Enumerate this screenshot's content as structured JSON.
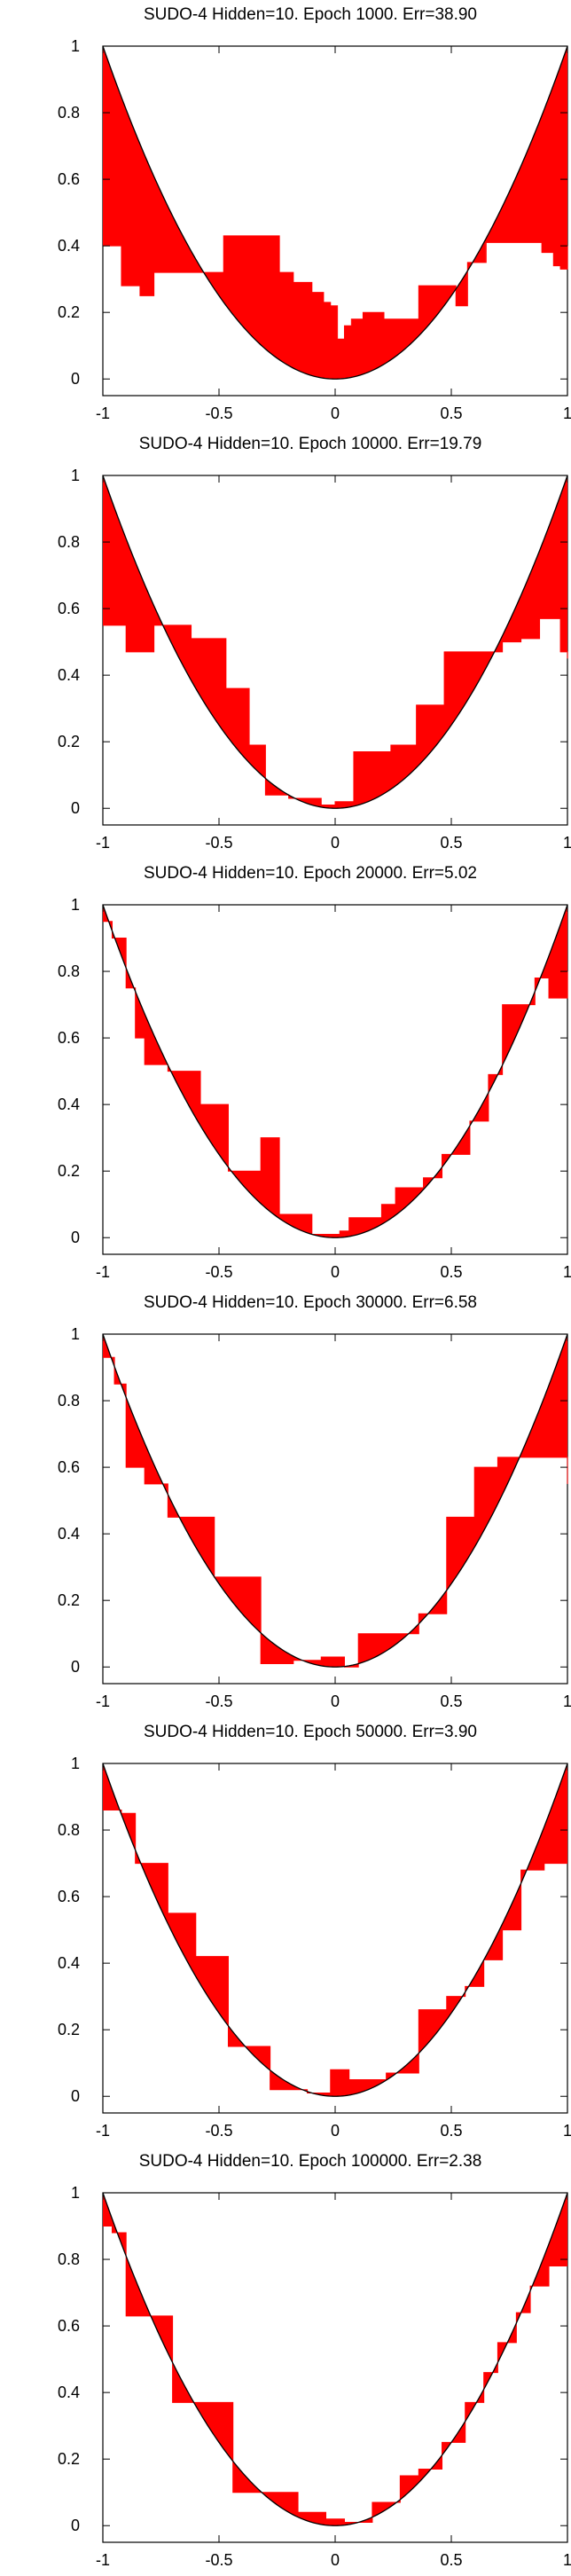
{
  "chart_data": [
    {
      "type": "area",
      "title": "SUDO-4 Hidden=10. Epoch 1000. Err=38.90",
      "xlim": [
        -1,
        1
      ],
      "ylim": [
        -0.05,
        1
      ],
      "xticks": [
        -1,
        -0.5,
        0,
        0.5,
        1
      ],
      "yticks": [
        0,
        0.2,
        0.4,
        0.6,
        0.8,
        1
      ],
      "xtick_labels": [
        "-1",
        "-0.5",
        "0",
        "0.5",
        "1"
      ],
      "ytick_labels": [
        "0",
        "0.2",
        "0.4",
        "0.6",
        "0.8",
        "1"
      ],
      "target": {
        "name": "x²",
        "color": "#000000"
      },
      "fill_color": "#ff0000",
      "series": [
        {
          "x": [
            -1,
            -0.93,
            -0.92,
            -0.86,
            -0.84,
            -0.78,
            -0.48,
            -0.3,
            -0.24,
            -0.18,
            -0.1,
            -0.05,
            -0.02,
            0.01,
            0.04,
            0.07,
            0.12,
            0.21,
            0.36,
            0.44,
            0.52,
            0.57,
            0.65,
            0.82,
            0.89,
            0.94,
            0.97,
            1
          ],
          "y": [
            0.4,
            0.4,
            0.28,
            0.28,
            0.25,
            0.32,
            0.43,
            0.43,
            0.32,
            0.29,
            0.26,
            0.23,
            0.22,
            0.12,
            0.16,
            0.18,
            0.2,
            0.18,
            0.28,
            0.28,
            0.22,
            0.35,
            0.41,
            0.41,
            0.38,
            0.34,
            0.33,
            0.4
          ]
        }
      ]
    },
    {
      "type": "area",
      "title": "SUDO-4 Hidden=10. Epoch 10000. Err=19.79",
      "xlim": [
        -1,
        1
      ],
      "ylim": [
        -0.05,
        1
      ],
      "xticks": [
        -1,
        -0.5,
        0,
        0.5,
        1
      ],
      "yticks": [
        0,
        0.2,
        0.4,
        0.6,
        0.8,
        1
      ],
      "xtick_labels": [
        "-1",
        "-0.5",
        "0",
        "0.5",
        "1"
      ],
      "ytick_labels": [
        "0",
        "0.2",
        "0.4",
        "0.6",
        "0.8",
        "1"
      ],
      "target": {
        "name": "x²",
        "color": "#000000"
      },
      "fill_color": "#ff0000",
      "series": [
        {
          "x": [
            -1,
            -0.98,
            -0.9,
            -0.78,
            -0.62,
            -0.47,
            -0.37,
            -0.3,
            -0.2,
            -0.06,
            0.0,
            0.08,
            0.24,
            0.35,
            0.47,
            0.61,
            0.72,
            0.8,
            0.88,
            0.97,
            1
          ],
          "y": [
            0.55,
            0.55,
            0.47,
            0.55,
            0.51,
            0.36,
            0.19,
            0.04,
            0.03,
            0.01,
            0.02,
            0.17,
            0.19,
            0.31,
            0.47,
            0.47,
            0.5,
            0.51,
            0.57,
            0.47,
            0.45
          ]
        }
      ]
    },
    {
      "type": "area",
      "title": "SUDO-4 Hidden=10. Epoch 20000. Err=5.02",
      "xlim": [
        -1,
        1
      ],
      "ylim": [
        -0.05,
        1
      ],
      "xticks": [
        -1,
        -0.5,
        0,
        0.5,
        1
      ],
      "yticks": [
        0,
        0.2,
        0.4,
        0.6,
        0.8,
        1
      ],
      "xtick_labels": [
        "-1",
        "-0.5",
        "0",
        "0.5",
        "1"
      ],
      "ytick_labels": [
        "0",
        "0.2",
        "0.4",
        "0.6",
        "0.8",
        "1"
      ],
      "target": {
        "name": "x²",
        "color": "#000000"
      },
      "fill_color": "#ff0000",
      "series": [
        {
          "x": [
            -1,
            -0.96,
            -0.9,
            -0.86,
            -0.82,
            -0.72,
            -0.58,
            -0.46,
            -0.32,
            -0.24,
            -0.1,
            0.02,
            0.06,
            0.2,
            0.26,
            0.38,
            0.46,
            0.58,
            0.66,
            0.72,
            0.86,
            0.92,
            1
          ],
          "y": [
            0.95,
            0.9,
            0.75,
            0.6,
            0.52,
            0.5,
            0.4,
            0.2,
            0.3,
            0.07,
            0.01,
            0.02,
            0.06,
            0.1,
            0.15,
            0.18,
            0.25,
            0.35,
            0.49,
            0.7,
            0.78,
            0.72,
            0.8
          ]
        }
      ]
    },
    {
      "type": "area",
      "title": "SUDO-4 Hidden=10. Epoch 30000. Err=6.58",
      "xlim": [
        -1,
        1
      ],
      "ylim": [
        -0.05,
        1
      ],
      "xticks": [
        -1,
        -0.5,
        0,
        0.5,
        1
      ],
      "yticks": [
        0,
        0.2,
        0.4,
        0.6,
        0.8,
        1
      ],
      "xtick_labels": [
        "-1",
        "-0.5",
        "0",
        "0.5",
        "1"
      ],
      "ytick_labels": [
        "0",
        "0.2",
        "0.4",
        "0.6",
        "0.8",
        "1"
      ],
      "target": {
        "name": "x²",
        "color": "#000000"
      },
      "fill_color": "#ff0000",
      "series": [
        {
          "x": [
            -1,
            -0.95,
            -0.9,
            -0.82,
            -0.72,
            -0.52,
            -0.32,
            -0.18,
            -0.06,
            0.04,
            0.1,
            0.24,
            0.36,
            0.48,
            0.6,
            0.7,
            0.86,
            1
          ],
          "y": [
            0.93,
            0.85,
            0.6,
            0.55,
            0.45,
            0.27,
            0.01,
            0.02,
            0.03,
            0.0,
            0.1,
            0.1,
            0.16,
            0.45,
            0.6,
            0.63,
            0.63,
            0.55
          ]
        }
      ]
    },
    {
      "type": "area",
      "title": "SUDO-4 Hidden=10. Epoch 50000. Err=3.90",
      "xlim": [
        -1,
        1
      ],
      "ylim": [
        -0.05,
        1
      ],
      "xticks": [
        -1,
        -0.5,
        0,
        0.5,
        1
      ],
      "yticks": [
        0,
        0.2,
        0.4,
        0.6,
        0.8,
        1
      ],
      "xtick_labels": [
        "-1",
        "-0.5",
        "0",
        "0.5",
        "1"
      ],
      "ytick_labels": [
        "0",
        "0.2",
        "0.4",
        "0.6",
        "0.8",
        "1"
      ],
      "target": {
        "name": "x²",
        "color": "#000000"
      },
      "fill_color": "#ff0000",
      "series": [
        {
          "x": [
            -1,
            -0.92,
            -0.86,
            -0.72,
            -0.6,
            -0.46,
            -0.28,
            -0.12,
            -0.02,
            0.06,
            0.22,
            0.36,
            0.48,
            0.56,
            0.64,
            0.72,
            0.8,
            0.9,
            1
          ],
          "y": [
            0.86,
            0.85,
            0.7,
            0.55,
            0.42,
            0.15,
            0.02,
            0.01,
            0.08,
            0.05,
            0.07,
            0.26,
            0.3,
            0.33,
            0.41,
            0.5,
            0.68,
            0.7,
            0.7
          ]
        }
      ]
    },
    {
      "type": "area",
      "title": "SUDO-4 Hidden=10. Epoch 100000. Err=2.38",
      "xlim": [
        -1,
        1
      ],
      "ylim": [
        -0.05,
        1
      ],
      "xticks": [
        -1,
        -0.5,
        0,
        0.5,
        1
      ],
      "yticks": [
        0,
        0.2,
        0.4,
        0.6,
        0.8,
        1
      ],
      "xtick_labels": [
        "-1",
        "-0.5",
        "0",
        "0.5",
        "1"
      ],
      "ytick_labels": [
        "0",
        "0.2",
        "0.4",
        "0.6",
        "0.8",
        "1"
      ],
      "target": {
        "name": "x²",
        "color": "#000000"
      },
      "fill_color": "#ff0000",
      "series": [
        {
          "x": [
            -1,
            -0.96,
            -0.9,
            -0.8,
            -0.7,
            -0.56,
            -0.44,
            -0.3,
            -0.16,
            -0.04,
            0.04,
            0.16,
            0.28,
            0.36,
            0.46,
            0.56,
            0.64,
            0.7,
            0.78,
            0.84,
            0.92,
            1
          ],
          "y": [
            0.9,
            0.88,
            0.63,
            0.63,
            0.37,
            0.37,
            0.1,
            0.1,
            0.04,
            0.02,
            0.01,
            0.07,
            0.15,
            0.17,
            0.25,
            0.37,
            0.46,
            0.55,
            0.64,
            0.72,
            0.78,
            0.78
          ]
        }
      ]
    }
  ]
}
